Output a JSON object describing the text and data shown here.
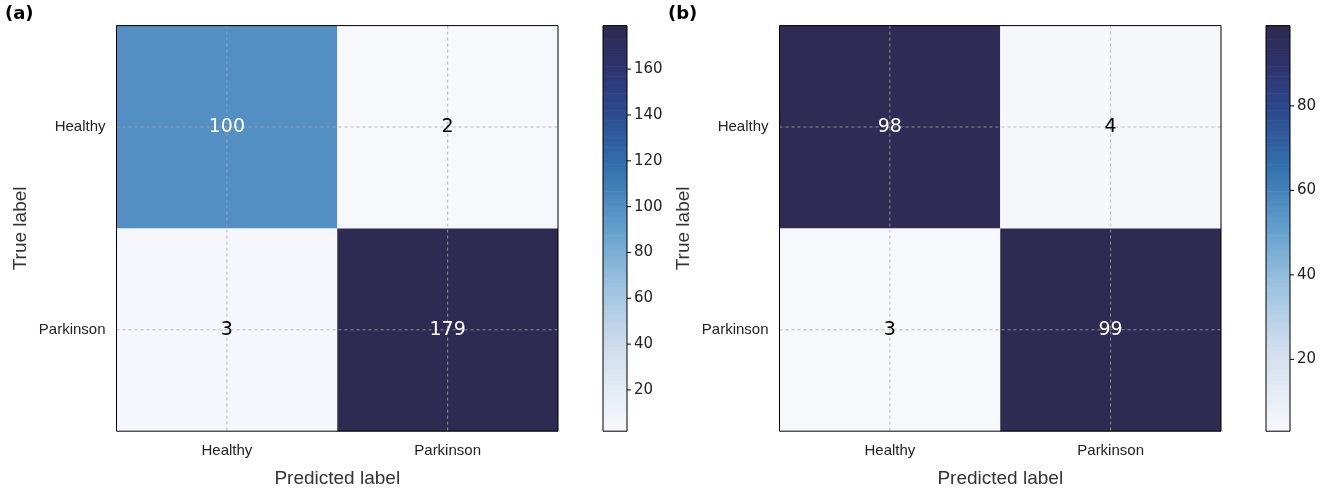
{
  "chart_data": [
    {
      "type": "heatmap",
      "title": "(a)",
      "xlabel": "Predicted label",
      "ylabel": "True label",
      "categories": [
        "Healthy",
        "Parkinson"
      ],
      "y_categories": [
        "Healthy",
        "Parkinson"
      ],
      "cells": [
        [
          100,
          2
        ],
        [
          3,
          179
        ]
      ],
      "clim": [
        2,
        179
      ],
      "cticks": [
        20,
        40,
        60,
        80,
        100,
        120,
        140,
        160
      ],
      "grid": true,
      "data_labels": true
    },
    {
      "type": "heatmap",
      "title": "(b)",
      "xlabel": "Predicted label",
      "ylabel": "True label",
      "categories": [
        "Healthy",
        "Parkinson"
      ],
      "y_categories": [
        "Healthy",
        "Parkinson"
      ],
      "cells": [
        [
          98,
          4
        ],
        [
          3,
          99
        ]
      ],
      "clim": [
        3,
        99
      ],
      "cticks": [
        20,
        40,
        60,
        80
      ],
      "grid": true,
      "data_labels": true
    }
  ]
}
